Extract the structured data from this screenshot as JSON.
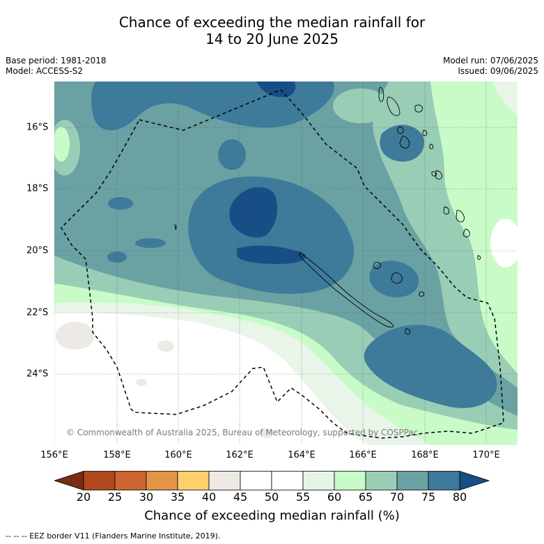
{
  "title_line1": "Chance of exceeding the median rainfall for",
  "title_line2": "14 to 20 June 2025",
  "meta_left": [
    "Base period: 1981-2018",
    "Model: ACCESS-S2"
  ],
  "meta_right": [
    "Model run: 07/06/2025",
    "Issued: 09/06/2025"
  ],
  "lat_labels": [
    "16°S",
    "18°S",
    "20°S",
    "22°S",
    "24°S"
  ],
  "lon_labels": [
    "156°E",
    "158°E",
    "160°E",
    "162°E",
    "164°E",
    "166°E",
    "168°E",
    "170°E"
  ],
  "copyright": "© Commonwealth of Australia 2025, Bureau of Meteorology, supported by COSPPac",
  "colorbar": {
    "ticks": [
      "20",
      "25",
      "30",
      "35",
      "40",
      "45",
      "50",
      "55",
      "60",
      "65",
      "70",
      "75",
      "80"
    ],
    "colors": [
      "#7a2d10",
      "#b0491f",
      "#cc6530",
      "#e29447",
      "#fdd06b",
      "#ede9e5",
      "#ffffff",
      "#ffffff",
      "#e6f4e6",
      "#c8fbc8",
      "#99cdb5",
      "#6aa1a3",
      "#3e7a9a",
      "#174e86"
    ],
    "title": "Chance of exceeding median rainfall (%)"
  },
  "legend_footnote": "--  --  -- EEZ border V11 (Flanders Marine Institute, 2019).",
  "map_colors": {
    "c45": "#ede9e5",
    "c50": "#ffffff",
    "c55": "#e9f5e9",
    "c60": "#c8fbc8",
    "c65": "#99cdb5",
    "c70": "#6aa1a3",
    "c75": "#3e7a9a",
    "c80": "#174e86"
  }
}
